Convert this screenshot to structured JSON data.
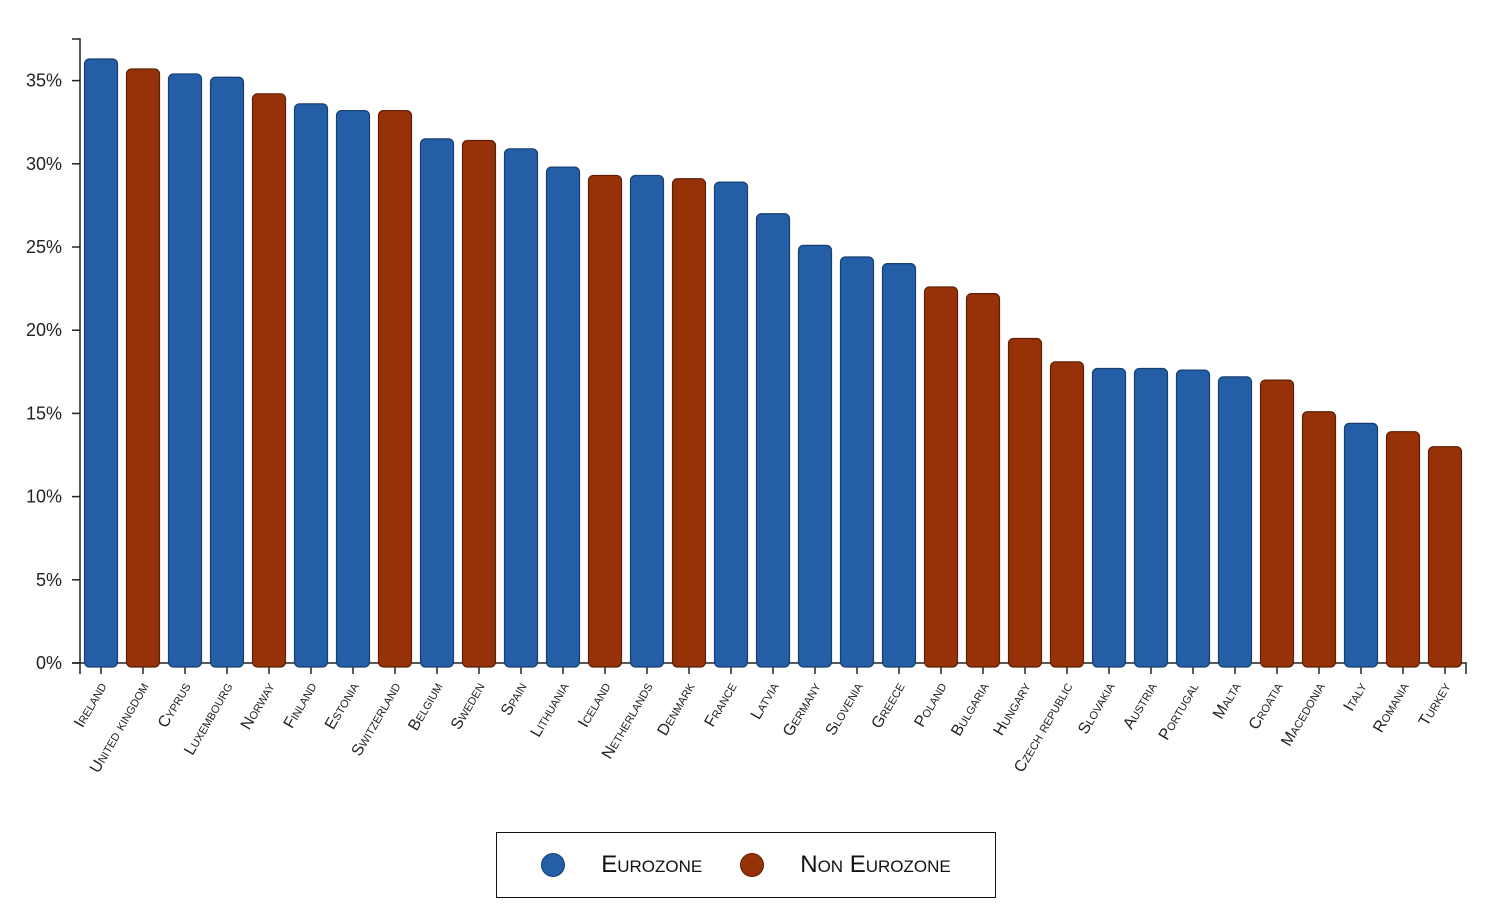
{
  "colors": {
    "eurozone_fill": "#235ea6",
    "eurozone_stroke": "#173f70",
    "non_eurozone_fill": "#973208",
    "non_eurozone_stroke": "#5e1f04"
  },
  "legend": {
    "eurozone_label": "Eurozone",
    "non_eurozone_label": "Non Eurozone"
  },
  "chart_data": {
    "type": "bar",
    "title": "",
    "xlabel": "",
    "ylabel": "",
    "ylim": [
      0,
      37.5
    ],
    "yticks": [
      0,
      5,
      10,
      15,
      20,
      25,
      30,
      35
    ],
    "ytick_labels": [
      "0%",
      "5%",
      "10%",
      "15%",
      "20%",
      "25%",
      "30%",
      "35%"
    ],
    "grid": false,
    "legend_position": "bottom-center",
    "categories": [
      "Ireland",
      "United kingdom",
      "Cyprus",
      "Luxembourg",
      "Norway",
      "Finland",
      "Estonia",
      "Switzerland",
      "Belgium",
      "Sweden",
      "Spain",
      "Lithuania",
      "Iceland",
      "Netherlands",
      "Denmark",
      "France",
      "Latvia",
      "Germany",
      "Slovenia",
      "Greece",
      "Poland",
      "Bulgaria",
      "Hungary",
      "Czech republic",
      "Slovakia",
      "Austria",
      "Portugal",
      "Malta",
      "Croatia",
      "Macedonia",
      "Italy",
      "Romania",
      "Turkey"
    ],
    "values": [
      36.3,
      35.7,
      35.4,
      35.2,
      34.2,
      33.6,
      33.2,
      33.2,
      31.5,
      31.4,
      30.9,
      29.8,
      29.3,
      29.3,
      29.1,
      28.9,
      27.0,
      25.1,
      24.4,
      24.0,
      22.6,
      22.2,
      19.5,
      18.1,
      17.7,
      17.7,
      17.6,
      17.2,
      17.0,
      15.1,
      14.4,
      13.9,
      13.0
    ],
    "groups": [
      "Eurozone",
      "Non Eurozone",
      "Eurozone",
      "Eurozone",
      "Non Eurozone",
      "Eurozone",
      "Eurozone",
      "Non Eurozone",
      "Eurozone",
      "Non Eurozone",
      "Eurozone",
      "Eurozone",
      "Non Eurozone",
      "Eurozone",
      "Non Eurozone",
      "Eurozone",
      "Eurozone",
      "Eurozone",
      "Eurozone",
      "Eurozone",
      "Non Eurozone",
      "Non Eurozone",
      "Non Eurozone",
      "Non Eurozone",
      "Eurozone",
      "Eurozone",
      "Eurozone",
      "Eurozone",
      "Non Eurozone",
      "Non Eurozone",
      "Eurozone",
      "Non Eurozone",
      "Non Eurozone"
    ]
  }
}
